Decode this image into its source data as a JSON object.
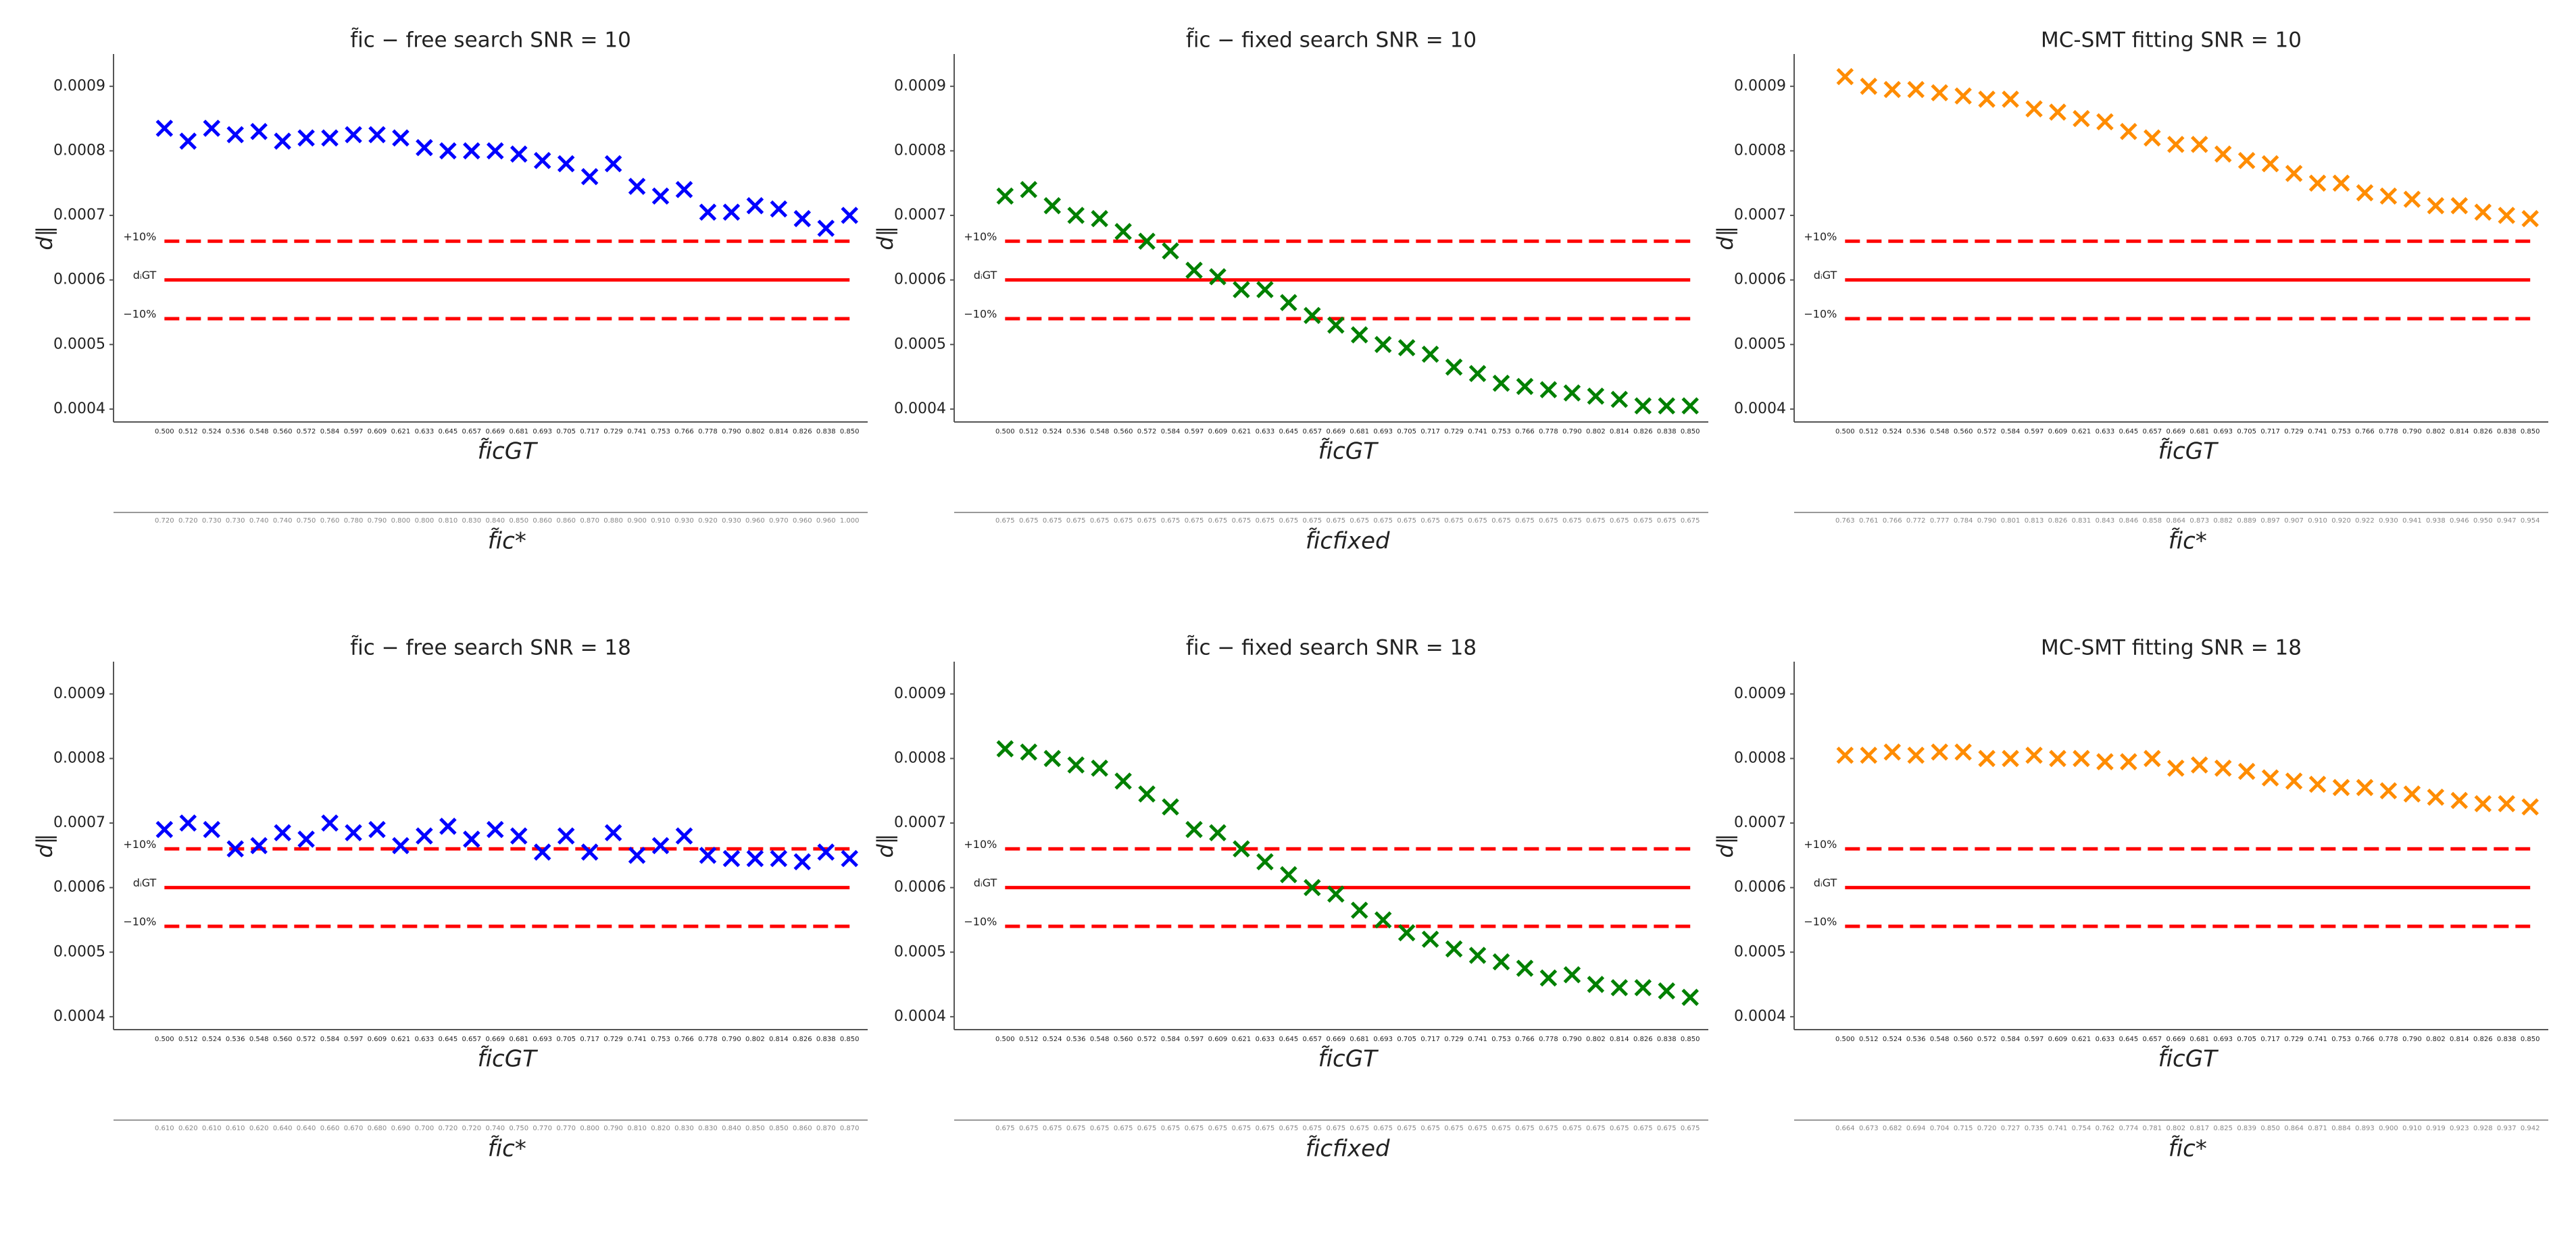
{
  "chart_data": [
    {
      "type": "scatter",
      "title": "f̃ic − free search SNR = 10",
      "xlabel": "f̃icGT",
      "ylabel": "d∥",
      "color": "#0000ff",
      "marker": "x",
      "categories": [
        "0.500",
        "0.512",
        "0.524",
        "0.536",
        "0.548",
        "0.560",
        "0.572",
        "0.584",
        "0.597",
        "0.609",
        "0.621",
        "0.633",
        "0.645",
        "0.657",
        "0.669",
        "0.681",
        "0.693",
        "0.705",
        "0.717",
        "0.729",
        "0.741",
        "0.753",
        "0.766",
        "0.778",
        "0.790",
        "0.802",
        "0.814",
        "0.826",
        "0.838",
        "0.850"
      ],
      "values": [
        0.000835,
        0.000815,
        0.000835,
        0.000825,
        0.00083,
        0.000815,
        0.00082,
        0.00082,
        0.000825,
        0.000825,
        0.00082,
        0.000805,
        0.0008,
        0.0008,
        0.0008,
        0.000795,
        0.000785,
        0.00078,
        0.00076,
        0.00078,
        0.000745,
        0.00073,
        0.00074,
        0.000705,
        0.000705,
        0.000715,
        0.00071,
        0.000695,
        0.00068,
        0.0007
      ],
      "ylim": [
        0.00038,
        0.00095
      ],
      "yticks": [
        0.0004,
        0.0005,
        0.0006,
        0.0007,
        0.0008,
        0.0009
      ],
      "ref_lines": [
        {
          "label": "+10%",
          "value": 0.00066,
          "style": "dashed"
        },
        {
          "label": "dᵢGT",
          "value": 0.0006,
          "style": "solid"
        },
        {
          "label": "−10%",
          "value": 0.00054,
          "style": "dashed"
        }
      ],
      "ref_color": "#ff0000",
      "x2label": "f̃ic*",
      "x2_categories": [
        "0.720",
        "0.720",
        "0.730",
        "0.730",
        "0.740",
        "0.740",
        "0.750",
        "0.760",
        "0.780",
        "0.790",
        "0.800",
        "0.800",
        "0.810",
        "0.830",
        "0.840",
        "0.850",
        "0.860",
        "0.860",
        "0.870",
        "0.880",
        "0.900",
        "0.910",
        "0.930",
        "0.920",
        "0.930",
        "0.960",
        "0.970",
        "0.960",
        "0.960",
        "1.000"
      ]
    },
    {
      "type": "scatter",
      "title": "f̃ic − fixed search SNR = 10",
      "xlabel": "f̃icGT",
      "ylabel": "d∥",
      "color": "#008000",
      "marker": "x",
      "categories": [
        "0.500",
        "0.512",
        "0.524",
        "0.536",
        "0.548",
        "0.560",
        "0.572",
        "0.584",
        "0.597",
        "0.609",
        "0.621",
        "0.633",
        "0.645",
        "0.657",
        "0.669",
        "0.681",
        "0.693",
        "0.705",
        "0.717",
        "0.729",
        "0.741",
        "0.753",
        "0.766",
        "0.778",
        "0.790",
        "0.802",
        "0.814",
        "0.826",
        "0.838",
        "0.850"
      ],
      "values": [
        0.00073,
        0.00074,
        0.000715,
        0.0007,
        0.000695,
        0.000675,
        0.00066,
        0.000645,
        0.000615,
        0.000605,
        0.000585,
        0.000585,
        0.000565,
        0.000545,
        0.00053,
        0.000515,
        0.0005,
        0.000495,
        0.000485,
        0.000465,
        0.000455,
        0.00044,
        0.000435,
        0.00043,
        0.000425,
        0.00042,
        0.000415,
        0.000405,
        0.000405,
        0.000405
      ],
      "ylim": [
        0.00038,
        0.00095
      ],
      "yticks": [
        0.0004,
        0.0005,
        0.0006,
        0.0007,
        0.0008,
        0.0009
      ],
      "ref_lines": [
        {
          "label": "+10%",
          "value": 0.00066,
          "style": "dashed"
        },
        {
          "label": "dᵢGT",
          "value": 0.0006,
          "style": "solid"
        },
        {
          "label": "−10%",
          "value": 0.00054,
          "style": "dashed"
        }
      ],
      "ref_color": "#ff0000",
      "x2label": "f̃icfixed",
      "x2_categories": [
        "0.675",
        "0.675",
        "0.675",
        "0.675",
        "0.675",
        "0.675",
        "0.675",
        "0.675",
        "0.675",
        "0.675",
        "0.675",
        "0.675",
        "0.675",
        "0.675",
        "0.675",
        "0.675",
        "0.675",
        "0.675",
        "0.675",
        "0.675",
        "0.675",
        "0.675",
        "0.675",
        "0.675",
        "0.675",
        "0.675",
        "0.675",
        "0.675",
        "0.675",
        "0.675"
      ]
    },
    {
      "type": "scatter",
      "title": "MC-SMT fitting  SNR = 10",
      "xlabel": "f̃icGT",
      "ylabel": "d∥",
      "color": "#ff8c00",
      "marker": "x",
      "categories": [
        "0.500",
        "0.512",
        "0.524",
        "0.536",
        "0.548",
        "0.560",
        "0.572",
        "0.584",
        "0.597",
        "0.609",
        "0.621",
        "0.633",
        "0.645",
        "0.657",
        "0.669",
        "0.681",
        "0.693",
        "0.705",
        "0.717",
        "0.729",
        "0.741",
        "0.753",
        "0.766",
        "0.778",
        "0.790",
        "0.802",
        "0.814",
        "0.826",
        "0.838",
        "0.850"
      ],
      "values": [
        0.000915,
        0.0009,
        0.000895,
        0.000895,
        0.00089,
        0.000885,
        0.00088,
        0.00088,
        0.000865,
        0.00086,
        0.00085,
        0.000845,
        0.00083,
        0.00082,
        0.00081,
        0.00081,
        0.000795,
        0.000785,
        0.00078,
        0.000765,
        0.00075,
        0.00075,
        0.000735,
        0.00073,
        0.000725,
        0.000715,
        0.000715,
        0.000705,
        0.0007,
        0.000695
      ],
      "ylim": [
        0.00038,
        0.00095
      ],
      "yticks": [
        0.0004,
        0.0005,
        0.0006,
        0.0007,
        0.0008,
        0.0009
      ],
      "ref_lines": [
        {
          "label": "+10%",
          "value": 0.00066,
          "style": "dashed"
        },
        {
          "label": "dᵢGT",
          "value": 0.0006,
          "style": "solid"
        },
        {
          "label": "−10%",
          "value": 0.00054,
          "style": "dashed"
        }
      ],
      "ref_color": "#ff0000",
      "x2label": "f̃ic*",
      "x2_categories": [
        "0.763",
        "0.761",
        "0.766",
        "0.772",
        "0.777",
        "0.784",
        "0.790",
        "0.801",
        "0.813",
        "0.826",
        "0.831",
        "0.843",
        "0.846",
        "0.858",
        "0.864",
        "0.873",
        "0.882",
        "0.889",
        "0.897",
        "0.907",
        "0.910",
        "0.920",
        "0.922",
        "0.930",
        "0.941",
        "0.938",
        "0.946",
        "0.950",
        "0.947",
        "0.954"
      ]
    },
    {
      "type": "scatter",
      "title": "f̃ic − free search SNR = 18",
      "xlabel": "f̃icGT",
      "ylabel": "d∥",
      "color": "#0000ff",
      "marker": "x",
      "categories": [
        "0.500",
        "0.512",
        "0.524",
        "0.536",
        "0.548",
        "0.560",
        "0.572",
        "0.584",
        "0.597",
        "0.609",
        "0.621",
        "0.633",
        "0.645",
        "0.657",
        "0.669",
        "0.681",
        "0.693",
        "0.705",
        "0.717",
        "0.729",
        "0.741",
        "0.753",
        "0.766",
        "0.778",
        "0.790",
        "0.802",
        "0.814",
        "0.826",
        "0.838",
        "0.850"
      ],
      "values": [
        0.00069,
        0.0007,
        0.00069,
        0.00066,
        0.000665,
        0.000685,
        0.000675,
        0.0007,
        0.000685,
        0.00069,
        0.000665,
        0.00068,
        0.000695,
        0.000675,
        0.00069,
        0.00068,
        0.000655,
        0.00068,
        0.000655,
        0.000685,
        0.00065,
        0.000665,
        0.00068,
        0.00065,
        0.000645,
        0.000645,
        0.000645,
        0.00064,
        0.000655,
        0.000645
      ],
      "ylim": [
        0.00038,
        0.00095
      ],
      "yticks": [
        0.0004,
        0.0005,
        0.0006,
        0.0007,
        0.0008,
        0.0009
      ],
      "ref_lines": [
        {
          "label": "+10%",
          "value": 0.00066,
          "style": "dashed"
        },
        {
          "label": "dᵢGT",
          "value": 0.0006,
          "style": "solid"
        },
        {
          "label": "−10%",
          "value": 0.00054,
          "style": "dashed"
        }
      ],
      "ref_color": "#ff0000",
      "x2label": "f̃ic*",
      "x2_categories": [
        "0.610",
        "0.620",
        "0.610",
        "0.610",
        "0.620",
        "0.640",
        "0.640",
        "0.660",
        "0.670",
        "0.680",
        "0.690",
        "0.700",
        "0.720",
        "0.720",
        "0.740",
        "0.750",
        "0.770",
        "0.770",
        "0.800",
        "0.790",
        "0.810",
        "0.820",
        "0.830",
        "0.830",
        "0.840",
        "0.850",
        "0.850",
        "0.860",
        "0.870",
        "0.870"
      ]
    },
    {
      "type": "scatter",
      "title": "f̃ic − fixed search SNR = 18",
      "xlabel": "f̃icGT",
      "ylabel": "d∥",
      "color": "#008000",
      "marker": "x",
      "categories": [
        "0.500",
        "0.512",
        "0.524",
        "0.536",
        "0.548",
        "0.560",
        "0.572",
        "0.584",
        "0.597",
        "0.609",
        "0.621",
        "0.633",
        "0.645",
        "0.657",
        "0.669",
        "0.681",
        "0.693",
        "0.705",
        "0.717",
        "0.729",
        "0.741",
        "0.753",
        "0.766",
        "0.778",
        "0.790",
        "0.802",
        "0.814",
        "0.826",
        "0.838",
        "0.850"
      ],
      "values": [
        0.000815,
        0.00081,
        0.0008,
        0.00079,
        0.000785,
        0.000765,
        0.000745,
        0.000725,
        0.00069,
        0.000685,
        0.00066,
        0.00064,
        0.00062,
        0.0006,
        0.00059,
        0.000565,
        0.00055,
        0.00053,
        0.00052,
        0.000505,
        0.000495,
        0.000485,
        0.000475,
        0.00046,
        0.000465,
        0.00045,
        0.000445,
        0.000445,
        0.00044,
        0.00043
      ],
      "ylim": [
        0.00038,
        0.00095
      ],
      "yticks": [
        0.0004,
        0.0005,
        0.0006,
        0.0007,
        0.0008,
        0.0009
      ],
      "ref_lines": [
        {
          "label": "+10%",
          "value": 0.00066,
          "style": "dashed"
        },
        {
          "label": "dᵢGT",
          "value": 0.0006,
          "style": "solid"
        },
        {
          "label": "−10%",
          "value": 0.00054,
          "style": "dashed"
        }
      ],
      "ref_color": "#ff0000",
      "x2label": "f̃icfixed",
      "x2_categories": [
        "0.675",
        "0.675",
        "0.675",
        "0.675",
        "0.675",
        "0.675",
        "0.675",
        "0.675",
        "0.675",
        "0.675",
        "0.675",
        "0.675",
        "0.675",
        "0.675",
        "0.675",
        "0.675",
        "0.675",
        "0.675",
        "0.675",
        "0.675",
        "0.675",
        "0.675",
        "0.675",
        "0.675",
        "0.675",
        "0.675",
        "0.675",
        "0.675",
        "0.675",
        "0.675"
      ]
    },
    {
      "type": "scatter",
      "title": "MC-SMT fitting   SNR = 18",
      "xlabel": "f̃icGT",
      "ylabel": "d∥",
      "color": "#ff8c00",
      "marker": "x",
      "categories": [
        "0.500",
        "0.512",
        "0.524",
        "0.536",
        "0.548",
        "0.560",
        "0.572",
        "0.584",
        "0.597",
        "0.609",
        "0.621",
        "0.633",
        "0.645",
        "0.657",
        "0.669",
        "0.681",
        "0.693",
        "0.705",
        "0.717",
        "0.729",
        "0.741",
        "0.753",
        "0.766",
        "0.778",
        "0.790",
        "0.802",
        "0.814",
        "0.826",
        "0.838",
        "0.850"
      ],
      "values": [
        0.000805,
        0.000805,
        0.00081,
        0.000805,
        0.00081,
        0.00081,
        0.0008,
        0.0008,
        0.000805,
        0.0008,
        0.0008,
        0.000795,
        0.000795,
        0.0008,
        0.000785,
        0.00079,
        0.000785,
        0.00078,
        0.00077,
        0.000765,
        0.00076,
        0.000755,
        0.000755,
        0.00075,
        0.000745,
        0.00074,
        0.000735,
        0.00073,
        0.00073,
        0.000725
      ],
      "ylim": [
        0.00038,
        0.00095
      ],
      "yticks": [
        0.0004,
        0.0005,
        0.0006,
        0.0007,
        0.0008,
        0.0009
      ],
      "ref_lines": [
        {
          "label": "+10%",
          "value": 0.00066,
          "style": "dashed"
        },
        {
          "label": "dᵢGT",
          "value": 0.0006,
          "style": "solid"
        },
        {
          "label": "−10%",
          "value": 0.00054,
          "style": "dashed"
        }
      ],
      "ref_color": "#ff0000",
      "x2label": "f̃ic*",
      "x2_categories": [
        "0.664",
        "0.673",
        "0.682",
        "0.694",
        "0.704",
        "0.715",
        "0.720",
        "0.727",
        "0.735",
        "0.741",
        "0.754",
        "0.762",
        "0.774",
        "0.781",
        "0.802",
        "0.817",
        "0.825",
        "0.839",
        "0.850",
        "0.864",
        "0.871",
        "0.884",
        "0.893",
        "0.900",
        "0.910",
        "0.919",
        "0.923",
        "0.928",
        "0.937",
        "0.942"
      ]
    }
  ]
}
